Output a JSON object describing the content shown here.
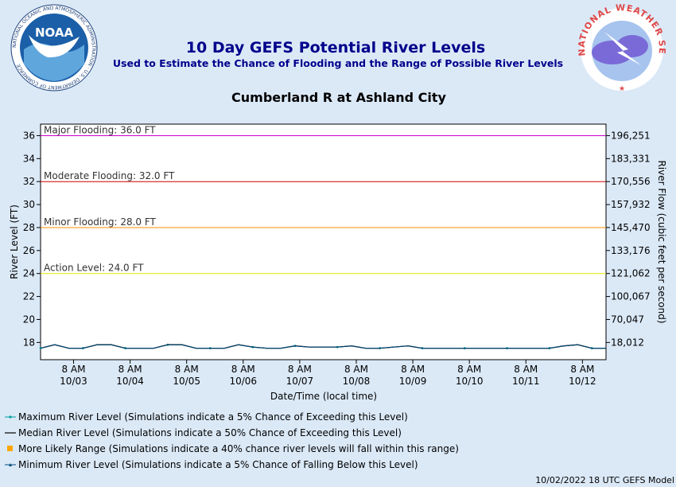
{
  "header": {
    "title": "10 Day GEFS Potential River Levels",
    "subtitle": "Used to Estimate the Chance of Flooding and the Range of Possible River Levels",
    "location": "Cumberland R at Ashland City",
    "noaa_logo_text": "NOAA",
    "noaa_ring_text": "NATIONAL OCEANIC AND ATMOSPHERIC ADMINISTRATION · U.S. DEPARTMENT OF COMMERCE",
    "nws_ring_text": "NATIONAL WEATHER SERVICE"
  },
  "footer": {
    "timestamp": "10/02/2022 18 UTC GEFS Model"
  },
  "colors": {
    "background": "#dbe9f7",
    "plot_bg": "#ffffff",
    "title": "#00008b",
    "major": "#cc00cc",
    "moderate": "#cc0000",
    "minor": "#ff8c00",
    "action": "#e5e500",
    "max_series": "#00a0a0",
    "median_series": "#000000",
    "range_series": "#ffa500",
    "min_series": "#004d80"
  },
  "chart_data": {
    "type": "line",
    "xlabel": "Date/Time (local time)",
    "ylabel": "River Level (FT)",
    "y2label": "River Flow (cubic feet per second)",
    "ylim": [
      16.5,
      37
    ],
    "y_ticks": [
      18,
      20,
      22,
      24,
      26,
      28,
      30,
      32,
      34,
      36
    ],
    "y2_ticks": [
      {
        "level": 18,
        "label": "18,012"
      },
      {
        "level": 20,
        "label": "70,047"
      },
      {
        "level": 22,
        "label": "100,067"
      },
      {
        "level": 24,
        "label": "121,062"
      },
      {
        "level": 26,
        "label": "133,176"
      },
      {
        "level": 28,
        "label": "145,470"
      },
      {
        "level": 30,
        "label": "157,932"
      },
      {
        "level": 32,
        "label": "170,556"
      },
      {
        "level": 34,
        "label": "183,331"
      },
      {
        "level": 36,
        "label": "196,251"
      }
    ],
    "xlim_hours": [
      -6,
      234
    ],
    "x_ticks": [
      {
        "hour": 8,
        "time": "8 AM",
        "date": "10/03"
      },
      {
        "hour": 32,
        "time": "8 AM",
        "date": "10/04"
      },
      {
        "hour": 56,
        "time": "8 AM",
        "date": "10/05"
      },
      {
        "hour": 80,
        "time": "8 AM",
        "date": "10/06"
      },
      {
        "hour": 104,
        "time": "8 AM",
        "date": "10/07"
      },
      {
        "hour": 128,
        "time": "8 AM",
        "date": "10/08"
      },
      {
        "hour": 152,
        "time": "8 AM",
        "date": "10/09"
      },
      {
        "hour": 176,
        "time": "8 AM",
        "date": "10/10"
      },
      {
        "hour": 200,
        "time": "8 AM",
        "date": "10/11"
      },
      {
        "hour": 224,
        "time": "8 AM",
        "date": "10/12"
      }
    ],
    "thresholds": [
      {
        "label": "Major Flooding: 36.0 FT",
        "value": 36.0,
        "color": "#cc00cc"
      },
      {
        "label": "Moderate Flooding: 32.0 FT",
        "value": 32.0,
        "color": "#cc0000"
      },
      {
        "label": "Minor Flooding: 28.0 FT",
        "value": 28.0,
        "color": "#ff8c00"
      },
      {
        "label": "Action Level: 24.0 FT",
        "value": 24.0,
        "color": "#e5e500"
      }
    ],
    "series": [
      {
        "name": "Maximum River Level",
        "x_hours": [
          -6,
          0,
          6,
          12,
          18,
          24,
          30,
          36,
          42,
          48,
          54,
          60,
          66,
          72,
          78,
          84,
          90,
          96,
          102,
          108,
          114,
          120,
          126,
          132,
          138,
          144,
          150,
          156,
          162,
          168,
          174,
          180,
          186,
          192,
          198,
          204,
          210,
          216,
          222,
          228,
          234
        ],
        "values": [
          17.5,
          17.8,
          17.5,
          17.5,
          17.8,
          17.8,
          17.5,
          17.5,
          17.5,
          17.8,
          17.8,
          17.5,
          17.5,
          17.5,
          17.8,
          17.6,
          17.5,
          17.5,
          17.7,
          17.6,
          17.6,
          17.6,
          17.7,
          17.5,
          17.5,
          17.6,
          17.7,
          17.5,
          17.5,
          17.5,
          17.5,
          17.5,
          17.5,
          17.5,
          17.5,
          17.5,
          17.5,
          17.7,
          17.8,
          17.5,
          17.5
        ]
      },
      {
        "name": "Median River Level",
        "x_hours": [
          -6,
          0,
          6,
          12,
          18,
          24,
          30,
          36,
          42,
          48,
          54,
          60,
          66,
          72,
          78,
          84,
          90,
          96,
          102,
          108,
          114,
          120,
          126,
          132,
          138,
          144,
          150,
          156,
          162,
          168,
          174,
          180,
          186,
          192,
          198,
          204,
          210,
          216,
          222,
          228,
          234
        ],
        "values": [
          17.5,
          17.8,
          17.5,
          17.5,
          17.8,
          17.8,
          17.5,
          17.5,
          17.5,
          17.8,
          17.8,
          17.5,
          17.5,
          17.5,
          17.8,
          17.6,
          17.5,
          17.5,
          17.7,
          17.6,
          17.6,
          17.6,
          17.7,
          17.5,
          17.5,
          17.6,
          17.7,
          17.5,
          17.5,
          17.5,
          17.5,
          17.5,
          17.5,
          17.5,
          17.5,
          17.5,
          17.5,
          17.7,
          17.8,
          17.5,
          17.5
        ]
      },
      {
        "name": "Minimum River Level",
        "x_hours": [
          -6,
          0,
          6,
          12,
          18,
          24,
          30,
          36,
          42,
          48,
          54,
          60,
          66,
          72,
          78,
          84,
          90,
          96,
          102,
          108,
          114,
          120,
          126,
          132,
          138,
          144,
          150,
          156,
          162,
          168,
          174,
          180,
          186,
          192,
          198,
          204,
          210,
          216,
          222,
          228,
          234
        ],
        "values": [
          17.5,
          17.8,
          17.5,
          17.5,
          17.8,
          17.8,
          17.5,
          17.5,
          17.5,
          17.8,
          17.8,
          17.5,
          17.5,
          17.5,
          17.8,
          17.6,
          17.5,
          17.5,
          17.7,
          17.6,
          17.6,
          17.6,
          17.7,
          17.5,
          17.5,
          17.6,
          17.7,
          17.5,
          17.5,
          17.5,
          17.5,
          17.5,
          17.5,
          17.5,
          17.5,
          17.5,
          17.5,
          17.7,
          17.8,
          17.5,
          17.5
        ]
      }
    ],
    "legend": [
      {
        "key": "max",
        "label": "Maximum River Level (Simulations indicate a 5% Chance of Exceeding this Level)"
      },
      {
        "key": "median",
        "label": "Median River Level (Simulations indicate a 50% Chance of Exceeding this Level)"
      },
      {
        "key": "range",
        "label": "More Likely Range (Simulations indicate a 40% chance river levels will fall within this range)"
      },
      {
        "key": "min",
        "label": "Minimum River Level (Simulations indicate a 5% Chance of Falling Below this Level)"
      }
    ],
    "legend_position": "bottom-left",
    "grid": false
  }
}
